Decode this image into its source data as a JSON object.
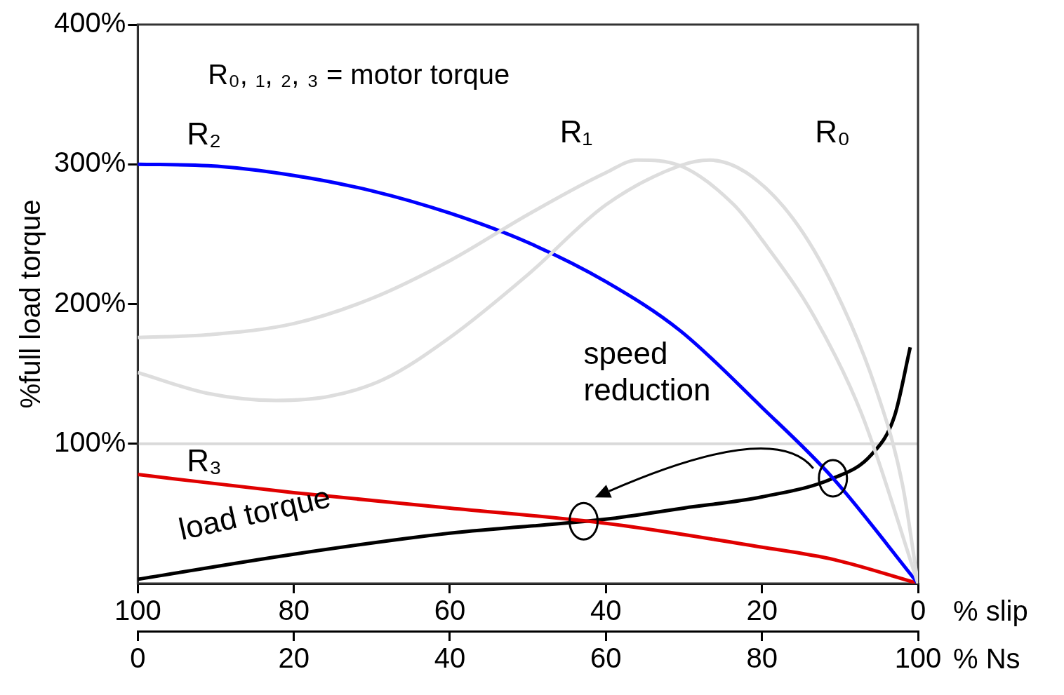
{
  "chart_data": {
    "type": "line",
    "ylabel": "%full load torque",
    "xlabel": "% Ns",
    "x2label": "% slip",
    "xlim": [
      0,
      100
    ],
    "xticks": [
      0,
      20,
      40,
      60,
      80,
      100
    ],
    "x2lim": [
      100,
      0
    ],
    "x2ticks": [
      100,
      80,
      60,
      40,
      20,
      0
    ],
    "ylim": [
      0,
      400
    ],
    "yticks": [
      {
        "value": 100,
        "label": "100%"
      },
      {
        "value": 200,
        "label": "200%"
      },
      {
        "value": 300,
        "label": "300%"
      },
      {
        "value": 400,
        "label": "400%"
      }
    ],
    "grid": false,
    "legend": false,
    "marker": "none",
    "line_style": "solid",
    "ref_lines": [
      {
        "axis": "y",
        "value": 100,
        "color": "#d9d9d9"
      }
    ],
    "annotations": [
      "R₀, ₁, ₂, ₃ = motor torque",
      "speed reduction"
    ],
    "series": [
      {
        "name": "R₀",
        "color": "#dddddd",
        "x": [
          0,
          9,
          17.7,
          24.6,
          31.5,
          40,
          50,
          60,
          69.5,
          73.3,
          78,
          84,
          89.3,
          94.5,
          98,
          100
        ],
        "values": [
          151,
          136,
          131,
          134,
          146,
          176,
          221,
          271,
          299,
          303,
          294,
          261,
          211,
          141,
          71,
          0
        ]
      },
      {
        "name": "R₁",
        "color": "#dddddd",
        "x": [
          0,
          9,
          20,
          30,
          40,
          50,
          60,
          64,
          69.5,
          76.4,
          80,
          86.7,
          92.8,
          100
        ],
        "values": [
          176,
          178,
          186,
          204,
          231,
          264,
          294,
          303,
          299,
          271,
          246,
          191,
          121,
          0
        ]
      },
      {
        "name": "R₂",
        "color": "#0000ff",
        "x": [
          0,
          9,
          20,
          30,
          40,
          50,
          60,
          69.5,
          80,
          89,
          100
        ],
        "values": [
          300,
          299,
          292,
          281,
          265,
          244,
          216,
          181,
          126,
          76,
          0
        ]
      },
      {
        "name": "R₃",
        "color": "#e00000",
        "x": [
          0,
          20,
          40,
          60,
          80,
          89.3,
          100
        ],
        "values": [
          78,
          65,
          54,
          43,
          26,
          17,
          0
        ]
      },
      {
        "name": "load torque",
        "color": "#000000",
        "x": [
          0,
          20,
          40,
          60,
          70,
          80,
          89,
          94,
          97,
          99
        ],
        "values": [
          3,
          21,
          36,
          46,
          54,
          62,
          75,
          92,
          120,
          169
        ]
      }
    ]
  }
}
